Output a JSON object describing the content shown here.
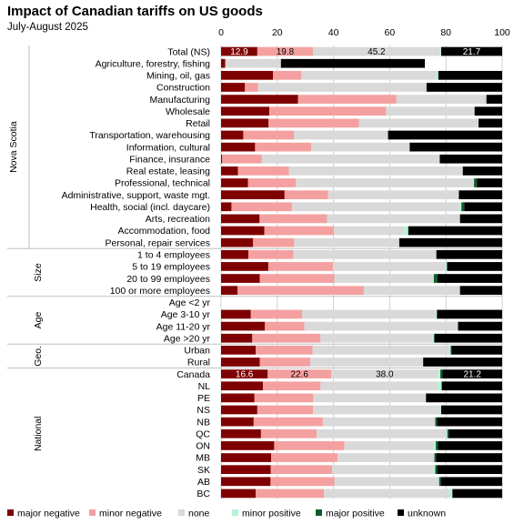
{
  "chart_data": {
    "type": "bar",
    "orientation": "horizontal",
    "stacked": true,
    "title": "Impact of Canadian tariffs on US goods",
    "subtitle": "July-August 2025",
    "xlim": [
      0,
      100
    ],
    "xticks": [
      0,
      20,
      40,
      60,
      80,
      100
    ],
    "grid": true,
    "legend_position": "bottom",
    "series": [
      {
        "name": "major negative",
        "color": "#7f0000"
      },
      {
        "name": "minor negative",
        "color": "#f4a0a0"
      },
      {
        "name": "none",
        "color": "#d9d9d9"
      },
      {
        "name": "minor positive",
        "color": "#b6f2d4"
      },
      {
        "name": "major positive",
        "color": "#0d5c2a"
      },
      {
        "name": "unknown",
        "color": "#000000"
      }
    ],
    "groups": [
      {
        "name": "Nova Scotia",
        "categories": [
          {
            "label": "Total (NS)",
            "values": [
              12.9,
              19.8,
              45.2,
              0.4,
              0.0,
              21.7
            ],
            "data_labels": [
              "12.9",
              "19.8",
              "45.2",
              "",
              "",
              "21.7"
            ]
          },
          {
            "label": "Agriculture, forestry, fishing",
            "values": [
              1.5,
              0.0,
              19.8,
              0.0,
              0.0,
              51.2
            ]
          },
          {
            "label": "Mining, oil, gas",
            "values": [
              18.5,
              10.0,
              48.0,
              0.8,
              0.0,
              22.7
            ]
          },
          {
            "label": "Construction",
            "values": [
              8.5,
              4.6,
              60.0,
              0.0,
              0.0,
              26.9
            ]
          },
          {
            "label": "Manufacturing",
            "values": [
              27.4,
              35.0,
              32.0,
              0.0,
              0.0,
              5.6
            ]
          },
          {
            "label": "Wholesale",
            "values": [
              17.2,
              41.5,
              31.5,
              0.0,
              0.0,
              9.8
            ]
          },
          {
            "label": "Retail",
            "values": [
              16.9,
              32.2,
              42.5,
              0.0,
              0.0,
              8.4
            ]
          },
          {
            "label": "Transportation, warehousing",
            "values": [
              7.9,
              18.0,
              33.5,
              0.0,
              0.0,
              40.6
            ]
          },
          {
            "label": "Information, cultural",
            "values": [
              12.1,
              20.0,
              35.0,
              0.0,
              0.0,
              32.9
            ]
          },
          {
            "label": "Finance, insurance",
            "values": [
              0.4,
              14.0,
              63.4,
              0.0,
              0.0,
              22.2
            ]
          },
          {
            "label": "Real estate, leasing",
            "values": [
              6.0,
              18.1,
              61.9,
              0.0,
              0.0,
              14.0
            ]
          },
          {
            "label": "Professional, technical",
            "values": [
              9.6,
              17.0,
              63.4,
              0.0,
              1.0,
              9.0
            ]
          },
          {
            "label": "Administrative, support, waste mgt.",
            "values": [
              22.6,
              15.5,
              46.5,
              0.0,
              0.0,
              15.4
            ]
          },
          {
            "label": "Health, social (incl. daycare)",
            "values": [
              3.7,
              21.5,
              59.8,
              0.5,
              1.0,
              13.5
            ]
          },
          {
            "label": "Arts, recreation",
            "values": [
              13.7,
              24.0,
              47.3,
              0.0,
              0.0,
              15.0
            ]
          },
          {
            "label": "Accommodation, food",
            "values": [
              15.4,
              24.7,
              25.0,
              1.5,
              0.0,
              33.4
            ]
          },
          {
            "label": "Personal, repair services",
            "values": [
              11.4,
              14.6,
              37.4,
              0.0,
              0.0,
              36.6
            ]
          }
        ]
      },
      {
        "name": "Size",
        "categories": [
          {
            "label": "1 to 4 employees",
            "values": [
              9.7,
              16.0,
              50.9,
              0.0,
              0.0,
              23.4
            ]
          },
          {
            "label": "5 to 19 employees",
            "values": [
              16.8,
              23.0,
              40.0,
              0.6,
              0.0,
              19.6
            ]
          },
          {
            "label": "20 to 99 employees",
            "values": [
              13.8,
              26.5,
              35.1,
              0.3,
              1.3,
              23.0
            ]
          },
          {
            "label": "100 or more employees",
            "values": [
              5.9,
              44.9,
              34.2,
              0.0,
              0.0,
              15.0
            ]
          }
        ]
      },
      {
        "name": "Age",
        "categories": [
          {
            "label": "Age <2 yr",
            "values": [
              0,
              0,
              0,
              0,
              0,
              0
            ]
          },
          {
            "label": "Age 3-10 yr",
            "values": [
              10.6,
              18.2,
              47.6,
              0.4,
              0.0,
              23.2
            ]
          },
          {
            "label": "Age 11-20 yr",
            "values": [
              15.6,
              14.1,
              54.6,
              0.0,
              0.0,
              15.7
            ]
          },
          {
            "label": "Age >20 yr",
            "values": [
              11.1,
              24.3,
              39.9,
              0.4,
              0.3,
              24.0
            ]
          }
        ]
      },
      {
        "name": "Geo.",
        "categories": [
          {
            "label": "Urban",
            "values": [
              12.3,
              20.3,
              48.7,
              0.4,
              0.3,
              18.0
            ]
          },
          {
            "label": "Rural",
            "values": [
              13.8,
              17.9,
              40.2,
              0.0,
              0.0,
              28.1
            ]
          }
        ]
      },
      {
        "name": "National",
        "categories": [
          {
            "label": "Canada",
            "values": [
              16.6,
              22.6,
              38.0,
              0.8,
              0.8,
              21.2
            ],
            "data_labels": [
              "16.6",
              "22.6",
              "38.0",
              "",
              "",
              "21.2"
            ]
          },
          {
            "label": "NL",
            "values": [
              14.9,
              20.5,
              41.6,
              1.5,
              0.0,
              21.5
            ]
          },
          {
            "label": "PE",
            "values": [
              11.9,
              20.9,
              40.1,
              0.0,
              0.0,
              27.1
            ]
          },
          {
            "label": "NS",
            "values": [
              12.9,
              19.8,
              45.2,
              0.4,
              0.0,
              21.7
            ]
          },
          {
            "label": "NB",
            "values": [
              11.6,
              24.6,
              40.0,
              0.0,
              0.6,
              23.2
            ]
          },
          {
            "label": "QC",
            "values": [
              14.2,
              19.8,
              46.0,
              0.5,
              0.5,
              19.0
            ]
          },
          {
            "label": "ON",
            "values": [
              18.9,
              25.0,
              31.5,
              1.0,
              0.8,
              22.8
            ]
          },
          {
            "label": "MB",
            "values": [
              17.8,
              23.6,
              34.5,
              0.0,
              0.6,
              23.5
            ]
          },
          {
            "label": "SK",
            "values": [
              17.7,
              21.8,
              36.2,
              0.5,
              0.6,
              23.2
            ]
          },
          {
            "label": "AB",
            "values": [
              17.6,
              22.7,
              37.3,
              0.0,
              0.6,
              21.8
            ]
          },
          {
            "label": "BC",
            "values": [
              12.3,
              24.3,
              44.5,
              1.2,
              0.0,
              17.7
            ]
          }
        ]
      }
    ]
  }
}
